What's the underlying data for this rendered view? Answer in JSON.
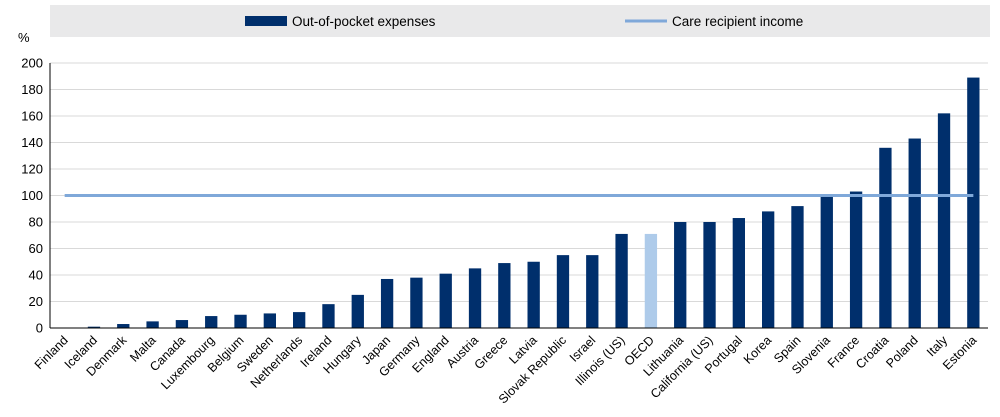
{
  "chart_data": {
    "type": "bar",
    "unit_label": "%",
    "ylim": [
      0,
      200
    ],
    "yticks": [
      0,
      20,
      40,
      60,
      80,
      100,
      120,
      140,
      160,
      180,
      200
    ],
    "grid": "horizontal",
    "legend_placement": "top",
    "categories": [
      "Finland",
      "Iceland",
      "Denmark",
      "Malta",
      "Canada",
      "Luxembourg",
      "Belgium",
      "Sweden",
      "Netherlands",
      "Ireland",
      "Hungary",
      "Japan",
      "Germany",
      "England",
      "Austria",
      "Greece",
      "Latvia",
      "Slovak Republic",
      "Israel",
      "Illinois (US)",
      "OECD",
      "Lithuania",
      "California (US)",
      "Portugal",
      "Korea",
      "Spain",
      "Slovenia",
      "France",
      "Croatia",
      "Poland",
      "Italy",
      "Estonia"
    ],
    "series": [
      {
        "name": "Out-of-pocket expenses",
        "type": "bar",
        "color": "#002f6c",
        "highlight": {
          "category": "OECD",
          "color": "#aecbea"
        },
        "values": [
          0,
          1,
          3,
          5,
          6,
          9,
          10,
          11,
          12,
          18,
          25,
          37,
          38,
          41,
          45,
          49,
          50,
          55,
          55,
          71,
          71,
          80,
          80,
          83,
          88,
          92,
          101,
          103,
          136,
          143,
          162,
          189
        ]
      },
      {
        "name": "Care recipient income",
        "type": "line",
        "color": "#7fa8d9",
        "value": 100
      }
    ]
  }
}
